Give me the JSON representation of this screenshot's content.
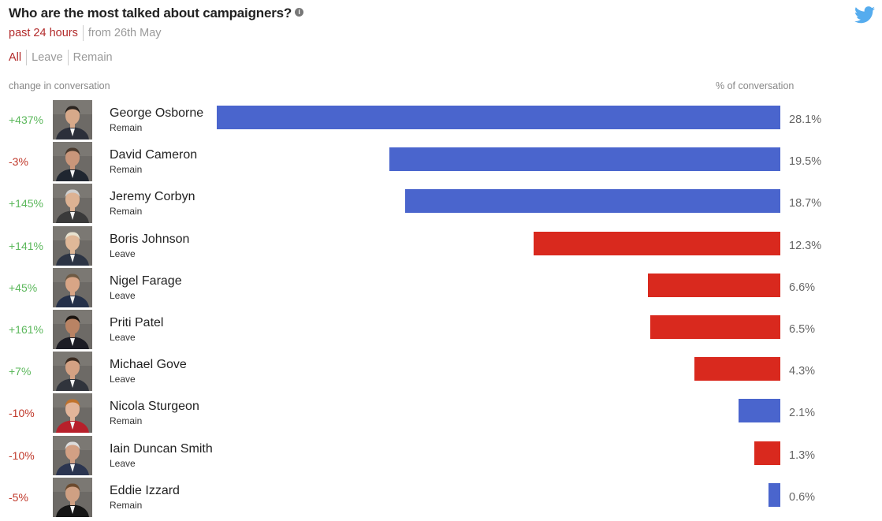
{
  "title": "Who are the most talked about campaigners?",
  "info_icon": "info-icon",
  "brand_icon": "twitter-bird-icon",
  "time_tabs": [
    {
      "label": "past 24 hours",
      "active": true
    },
    {
      "label": "from 26th May",
      "active": false
    }
  ],
  "filter_tabs": [
    {
      "label": "All",
      "active": true
    },
    {
      "label": "Leave",
      "active": false
    },
    {
      "label": "Remain",
      "active": false
    }
  ],
  "headers": {
    "change": "change in conversation",
    "pct": "% of conversation"
  },
  "colors": {
    "remain": "#4a65cd",
    "leave": "#d9291e",
    "positive": "#5cb85c",
    "negative": "#c0392b"
  },
  "chart_data": {
    "type": "bar",
    "orientation": "horizontal",
    "title": "Who are the most talked about campaigners?",
    "value_label": "% of conversation",
    "change_label": "change in conversation",
    "xlim": [
      0,
      28.1
    ],
    "rows": [
      {
        "name": "George Osborne",
        "side": "Remain",
        "change": "+437%",
        "value": 28.1,
        "value_label": "28.1%"
      },
      {
        "name": "David Cameron",
        "side": "Remain",
        "change": "-3%",
        "value": 19.5,
        "value_label": "19.5%"
      },
      {
        "name": "Jeremy Corbyn",
        "side": "Remain",
        "change": "+145%",
        "value": 18.7,
        "value_label": "18.7%"
      },
      {
        "name": "Boris Johnson",
        "side": "Leave",
        "change": "+141%",
        "value": 12.3,
        "value_label": "12.3%"
      },
      {
        "name": "Nigel Farage",
        "side": "Leave",
        "change": "+45%",
        "value": 6.6,
        "value_label": "6.6%"
      },
      {
        "name": "Priti Patel",
        "side": "Leave",
        "change": "+161%",
        "value": 6.5,
        "value_label": "6.5%"
      },
      {
        "name": "Michael Gove",
        "side": "Leave",
        "change": "+7%",
        "value": 4.3,
        "value_label": "4.3%"
      },
      {
        "name": "Nicola Sturgeon",
        "side": "Remain",
        "change": "-10%",
        "value": 2.1,
        "value_label": "2.1%"
      },
      {
        "name": "Iain Duncan Smith",
        "side": "Leave",
        "change": "-10%",
        "value": 1.3,
        "value_label": "1.3%"
      },
      {
        "name": "Eddie Izzard",
        "side": "Remain",
        "change": "-5%",
        "value": 0.6,
        "value_label": "0.6%"
      }
    ]
  }
}
